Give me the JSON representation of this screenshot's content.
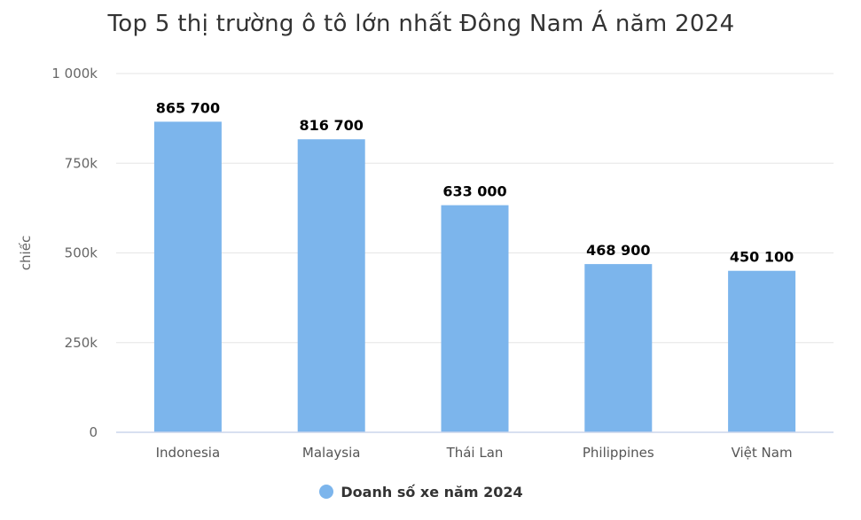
{
  "chart_data": {
    "type": "bar",
    "title": "Top 5 thị trường ô tô lớn nhất Đông Nam Á năm 2024",
    "ylabel": "chiếc",
    "xlabel": "",
    "categories": [
      "Indonesia",
      "Malaysia",
      "Thái Lan",
      "Philippines",
      "Việt Nam"
    ],
    "series": [
      {
        "name": "Doanh số xe năm 2024",
        "values": [
          865700,
          816700,
          633000,
          468900,
          450100
        ],
        "data_labels": [
          "865 700",
          "816 700",
          "633 000",
          "468 900",
          "450 100"
        ],
        "color": "#7cb5ec"
      }
    ],
    "ylim": [
      0,
      1000000
    ],
    "yticks": [
      0,
      250000,
      500000,
      750000,
      1000000
    ],
    "ytick_labels": [
      "0",
      "250k",
      "500k",
      "750k",
      "1 000k"
    ],
    "grid": true,
    "legend_position": "bottom-center"
  }
}
